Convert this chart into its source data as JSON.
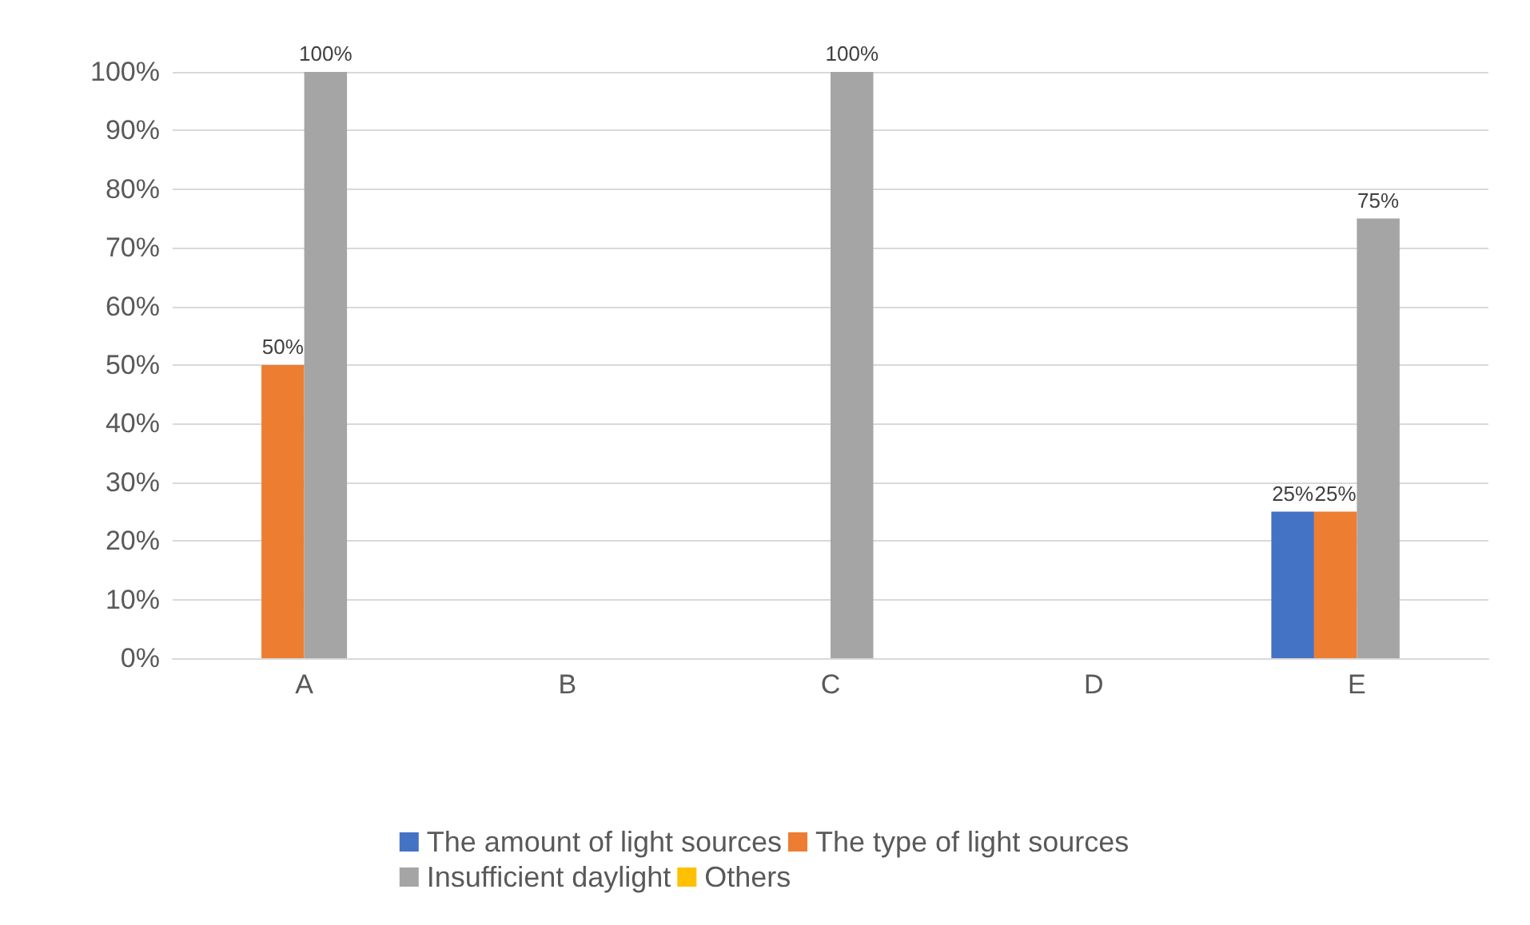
{
  "chart_data": {
    "type": "bar",
    "categories": [
      "A",
      "B",
      "C",
      "D",
      "E"
    ],
    "series": [
      {
        "name": "The amount of light sources",
        "color": "#4472c4",
        "values": [
          0,
          0,
          0,
          0,
          25
        ],
        "value_labels": [
          null,
          null,
          null,
          null,
          "25%"
        ]
      },
      {
        "name": "The type of light sources",
        "color": "#ed7d31",
        "values": [
          50,
          0,
          0,
          0,
          25
        ],
        "value_labels": [
          "50%",
          null,
          null,
          null,
          "25%"
        ]
      },
      {
        "name": "Insufficient daylight",
        "color": "#a5a5a5",
        "values": [
          100,
          0,
          100,
          0,
          75
        ],
        "value_labels": [
          "100%",
          null,
          "100%",
          null,
          "75%"
        ]
      },
      {
        "name": "Others",
        "color": "#ffc000",
        "values": [
          0,
          0,
          0,
          0,
          0
        ],
        "value_labels": [
          null,
          null,
          null,
          null,
          null
        ]
      }
    ],
    "ylim": [
      0,
      100
    ],
    "yticks": [
      {
        "value": 0,
        "label": "0%"
      },
      {
        "value": 10,
        "label": "10%"
      },
      {
        "value": 20,
        "label": "20%"
      },
      {
        "value": 30,
        "label": "30%"
      },
      {
        "value": 40,
        "label": "40%"
      },
      {
        "value": 50,
        "label": "50%"
      },
      {
        "value": 60,
        "label": "60%"
      },
      {
        "value": 70,
        "label": "70%"
      },
      {
        "value": 80,
        "label": "80%"
      },
      {
        "value": 90,
        "label": "90%"
      },
      {
        "value": 100,
        "label": "100%"
      }
    ],
    "grid": "y",
    "legend": "bottom"
  }
}
